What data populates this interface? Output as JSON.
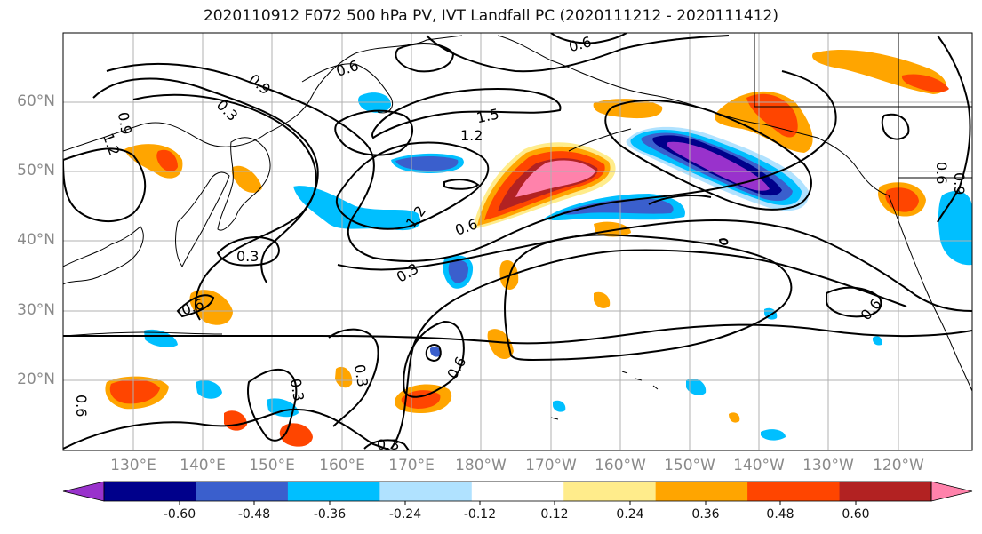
{
  "title": "2020110912 F072 500 hPa PV, IVT Landfall PC (2020111212 - 2020111412)",
  "lat_labels": [
    "60°N",
    "50°N",
    "40°N",
    "30°N",
    "20°N"
  ],
  "lon_labels": [
    "130°E",
    "140°E",
    "150°E",
    "160°E",
    "170°E",
    "180°W",
    "170°W",
    "160°W",
    "150°W",
    "140°W",
    "130°W",
    "120°W"
  ],
  "colorbar": {
    "ticks": [
      "-0.60",
      "-0.48",
      "-0.36",
      "-0.24",
      "-0.12",
      "0.12",
      "0.24",
      "0.36",
      "0.48",
      "0.60"
    ],
    "colors": [
      "#9932cc",
      "#00008b",
      "#3a5fcd",
      "#00bfff",
      "#b0e2ff",
      "#ffffff",
      "#ffec8b",
      "#ffa500",
      "#ff4500",
      "#b22222",
      "#ff82ab"
    ]
  },
  "contour_labels": [
    "0.6",
    "0.9",
    "0.3",
    "1.2",
    "1.5",
    "1.2",
    "0.9",
    "0.3",
    "0.6",
    "1.2",
    "0.6",
    "0.3",
    "0.6",
    "0.6",
    "0.3",
    "0.6",
    "0.3",
    "0.3",
    "0.6",
    "0.9",
    "0.6"
  ],
  "map_colors": {
    "grid": "#b0b0b0",
    "contour": "#000000",
    "coast": "#000000"
  }
}
